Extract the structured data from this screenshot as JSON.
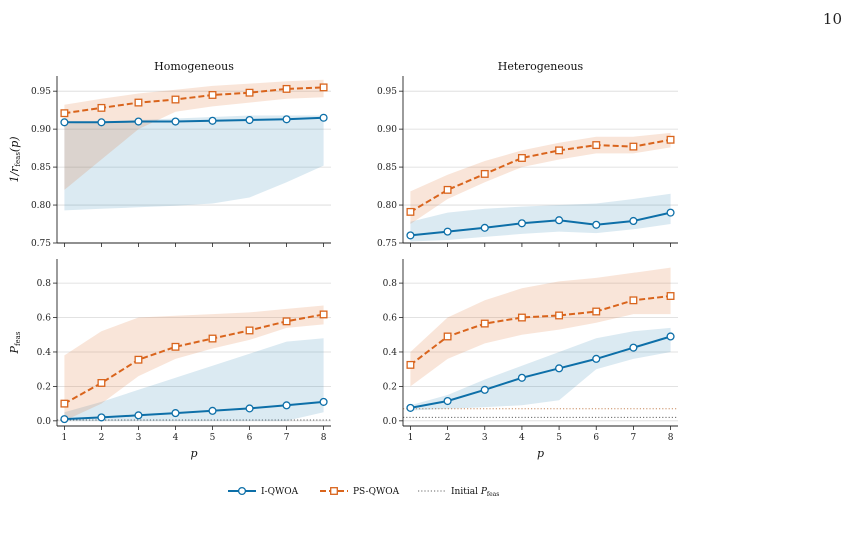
{
  "page": {
    "number": "10"
  },
  "colors": {
    "iqwoa": "#0d6fa8",
    "psqwoa": "#d9641c",
    "initial": "#666666"
  },
  "legend": {
    "items": [
      {
        "label": "I-QWOA",
        "style": "solid-circle"
      },
      {
        "label": "PS-QWOA",
        "style": "dashed-square"
      },
      {
        "label": "Initial ",
        "sub": "feas",
        "prefix": "P",
        "style": "dotted"
      }
    ]
  },
  "chart_data": [
    {
      "type": "line",
      "title": "Homogeneous",
      "ylabel": {
        "main": "1/r",
        "sub": "feas",
        "suffix": "(p)"
      },
      "xlabel": "",
      "x": [
        1,
        2,
        3,
        4,
        5,
        6,
        7,
        8
      ],
      "ylim": [
        0.75,
        0.97
      ],
      "yticks": [
        "0.75",
        "0.80",
        "0.85",
        "0.90",
        "0.95"
      ],
      "show_xticklabels": false,
      "series": [
        {
          "name": "I-QWOA",
          "values": [
            0.909,
            0.909,
            0.91,
            0.91,
            0.911,
            0.912,
            0.913,
            0.915
          ],
          "band_low": [
            0.793,
            0.795,
            0.797,
            0.799,
            0.802,
            0.81,
            0.83,
            0.852
          ],
          "band_high": [
            0.907,
            0.91,
            0.912,
            0.914,
            0.916,
            0.918,
            0.918,
            0.918
          ]
        },
        {
          "name": "PS-QWOA",
          "values": [
            0.921,
            0.928,
            0.935,
            0.939,
            0.945,
            0.948,
            0.953,
            0.955
          ],
          "band_low": [
            0.82,
            0.86,
            0.9,
            0.923,
            0.93,
            0.935,
            0.94,
            0.942
          ],
          "band_high": [
            0.932,
            0.94,
            0.947,
            0.952,
            0.957,
            0.96,
            0.963,
            0.965
          ]
        }
      ]
    },
    {
      "type": "line",
      "title": "Heterogeneous",
      "ylabel": "",
      "xlabel": "",
      "x": [
        1,
        2,
        3,
        4,
        5,
        6,
        7,
        8
      ],
      "ylim": [
        0.75,
        0.97
      ],
      "yticks": [
        "0.75",
        "0.80",
        "0.85",
        "0.90",
        "0.95"
      ],
      "show_xticklabels": false,
      "series": [
        {
          "name": "I-QWOA",
          "values": [
            0.76,
            0.765,
            0.77,
            0.776,
            0.78,
            0.774,
            0.779,
            0.79
          ],
          "band_low": [
            0.752,
            0.754,
            0.758,
            0.762,
            0.765,
            0.763,
            0.768,
            0.775
          ],
          "band_high": [
            0.778,
            0.79,
            0.795,
            0.798,
            0.8,
            0.802,
            0.808,
            0.815
          ]
        },
        {
          "name": "PS-QWOA",
          "values": [
            0.791,
            0.82,
            0.841,
            0.862,
            0.872,
            0.879,
            0.877,
            0.886
          ],
          "band_low": [
            0.775,
            0.808,
            0.83,
            0.85,
            0.86,
            0.868,
            0.868,
            0.876
          ],
          "band_high": [
            0.818,
            0.84,
            0.858,
            0.872,
            0.882,
            0.89,
            0.89,
            0.895
          ]
        }
      ]
    },
    {
      "type": "line",
      "title": "",
      "ylabel": {
        "main": "P",
        "sub": "feas",
        "suffix": ""
      },
      "xlabel": "p",
      "x": [
        1,
        2,
        3,
        4,
        5,
        6,
        7,
        8
      ],
      "ylim": [
        -0.03,
        0.94
      ],
      "yticks": [
        "0.0",
        "0.2",
        "0.4",
        "0.6",
        "0.8"
      ],
      "show_xticklabels": true,
      "initial_level": 0.005,
      "series": [
        {
          "name": "I-QWOA",
          "values": [
            0.01,
            0.02,
            0.032,
            0.045,
            0.058,
            0.072,
            0.09,
            0.11
          ],
          "band_low": [
            0.0,
            0.0,
            0.0,
            0.0,
            0.0,
            0.0,
            0.0,
            0.05
          ],
          "band_high": [
            0.05,
            0.11,
            0.18,
            0.25,
            0.32,
            0.39,
            0.46,
            0.48
          ]
        },
        {
          "name": "PS-QWOA",
          "values": [
            0.1,
            0.22,
            0.355,
            0.43,
            0.478,
            0.525,
            0.578,
            0.618
          ],
          "band_low": [
            0.0,
            0.1,
            0.26,
            0.36,
            0.42,
            0.47,
            0.54,
            0.56
          ],
          "band_high": [
            0.38,
            0.52,
            0.6,
            0.61,
            0.62,
            0.63,
            0.65,
            0.67
          ]
        }
      ]
    },
    {
      "type": "line",
      "title": "",
      "ylabel": "",
      "xlabel": "p",
      "x": [
        1,
        2,
        3,
        4,
        5,
        6,
        7,
        8
      ],
      "ylim": [
        -0.03,
        0.94
      ],
      "yticks": [
        "0.0",
        "0.2",
        "0.4",
        "0.6",
        "0.8"
      ],
      "show_xticklabels": true,
      "initial_levels": [
        0.02,
        0.07
      ],
      "series": [
        {
          "name": "I-QWOA",
          "values": [
            0.075,
            0.115,
            0.18,
            0.25,
            0.305,
            0.36,
            0.425,
            0.49
          ],
          "band_low": [
            0.06,
            0.07,
            0.08,
            0.09,
            0.12,
            0.3,
            0.36,
            0.4
          ],
          "band_high": [
            0.09,
            0.15,
            0.24,
            0.32,
            0.4,
            0.48,
            0.52,
            0.54
          ]
        },
        {
          "name": "PS-QWOA",
          "values": [
            0.325,
            0.49,
            0.565,
            0.6,
            0.612,
            0.635,
            0.7,
            0.725
          ],
          "band_low": [
            0.2,
            0.36,
            0.45,
            0.5,
            0.53,
            0.57,
            0.62,
            0.62
          ],
          "band_high": [
            0.4,
            0.6,
            0.7,
            0.77,
            0.81,
            0.83,
            0.86,
            0.89
          ]
        }
      ]
    }
  ]
}
